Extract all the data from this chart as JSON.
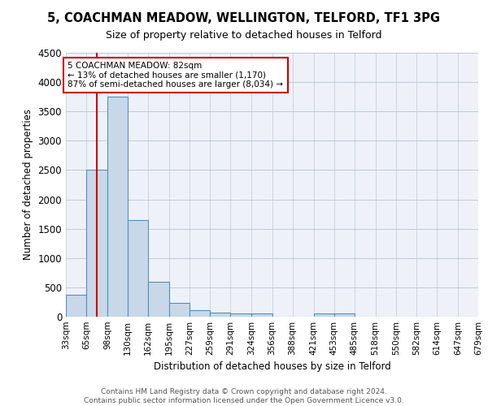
{
  "title": "5, COACHMAN MEADOW, WELLINGTON, TELFORD, TF1 3PG",
  "subtitle": "Size of property relative to detached houses in Telford",
  "xlabel": "Distribution of detached houses by size in Telford",
  "ylabel": "Number of detached properties",
  "bar_edges": [
    33,
    65,
    98,
    130,
    162,
    195,
    227,
    259,
    291,
    324,
    356,
    388,
    421,
    453,
    485,
    518,
    550,
    582,
    614,
    647,
    679
  ],
  "bar_heights": [
    380,
    2500,
    3750,
    1650,
    600,
    240,
    105,
    65,
    55,
    55,
    0,
    0,
    60,
    50,
    0,
    0,
    0,
    0,
    0,
    0
  ],
  "bar_color": "#c8d8e8",
  "bar_edge_color": "#5090c0",
  "grid_color": "#c0c8d8",
  "bg_color": "#eef2f8",
  "property_sqm": 82,
  "annotation_line_color": "#cc0000",
  "annotation_box_line1": "5 COACHMAN MEADOW: 82sqm",
  "annotation_box_line2": "← 13% of detached houses are smaller (1,170)",
  "annotation_box_line3": "87% of semi-detached houses are larger (8,034) →",
  "annotation_box_color": "white",
  "annotation_box_edge_color": "#cc0000",
  "footer_text": "Contains HM Land Registry data © Crown copyright and database right 2024.\nContains public sector information licensed under the Open Government Licence v3.0.",
  "ylim": [
    0,
    4500
  ],
  "tick_labels": [
    "33sqm",
    "65sqm",
    "98sqm",
    "130sqm",
    "162sqm",
    "195sqm",
    "227sqm",
    "259sqm",
    "291sqm",
    "324sqm",
    "356sqm",
    "388sqm",
    "421sqm",
    "453sqm",
    "485sqm",
    "518sqm",
    "550sqm",
    "582sqm",
    "614sqm",
    "647sqm",
    "679sqm"
  ]
}
